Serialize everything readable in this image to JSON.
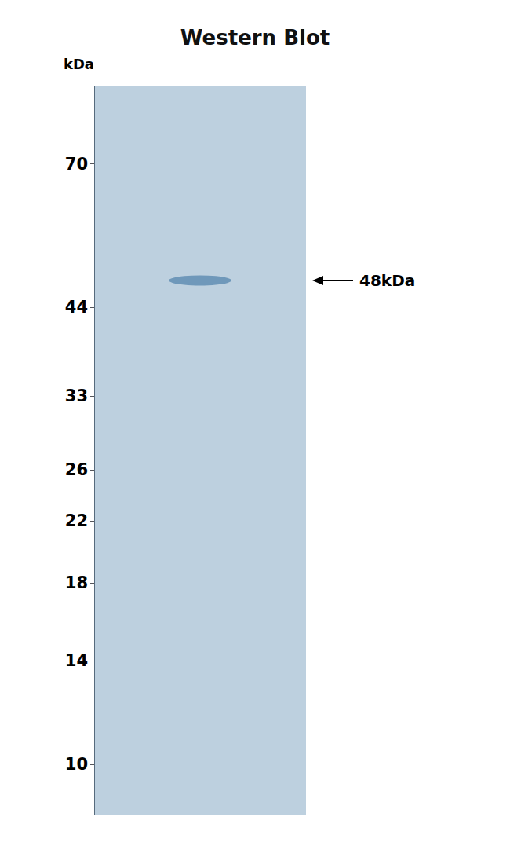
{
  "chart_data": {
    "type": "scatter",
    "title": "Western Blot",
    "ylabel": "kDa",
    "values": [
      48
    ],
    "color": "#5b8ab0",
    "log": "y",
    "ylim": [
      8.5,
      90
    ],
    "yticks": [
      70,
      44,
      33,
      26,
      22,
      18,
      14,
      10
    ],
    "grid": false,
    "tick_labels": "y",
    "annotations": [
      {
        "text": "48kDa",
        "y": 48
      }
    ]
  }
}
